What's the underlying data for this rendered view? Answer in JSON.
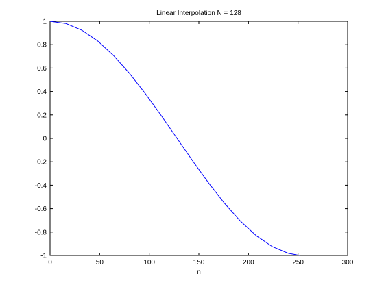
{
  "chart_data": {
    "type": "line",
    "title": "Linear Interpolation N = 128",
    "xlabel": "n",
    "ylabel": "",
    "xlim": [
      0,
      300
    ],
    "ylim": [
      -1,
      1
    ],
    "xticks": [
      "0",
      "50",
      "100",
      "150",
      "200",
      "250",
      "300"
    ],
    "yticks": [
      "1",
      "0.8",
      "0.6",
      "0.4",
      "0.2",
      "0",
      "-0.2",
      "-0.4",
      "-0.6",
      "-0.8",
      "-1"
    ],
    "grid": false,
    "legend": "none",
    "line_color": "#0000ff",
    "series": [
      {
        "x": [
          0,
          16,
          32,
          48,
          64,
          80,
          96,
          112,
          128,
          144,
          160,
          176,
          192,
          208,
          224,
          240,
          252
        ],
        "y": [
          1,
          0.9808,
          0.9239,
          0.8315,
          0.7071,
          0.5556,
          0.3827,
          0.1951,
          0,
          -0.1951,
          -0.3827,
          -0.5556,
          -0.7071,
          -0.8315,
          -0.9239,
          -0.9808,
          -1
        ]
      }
    ]
  }
}
